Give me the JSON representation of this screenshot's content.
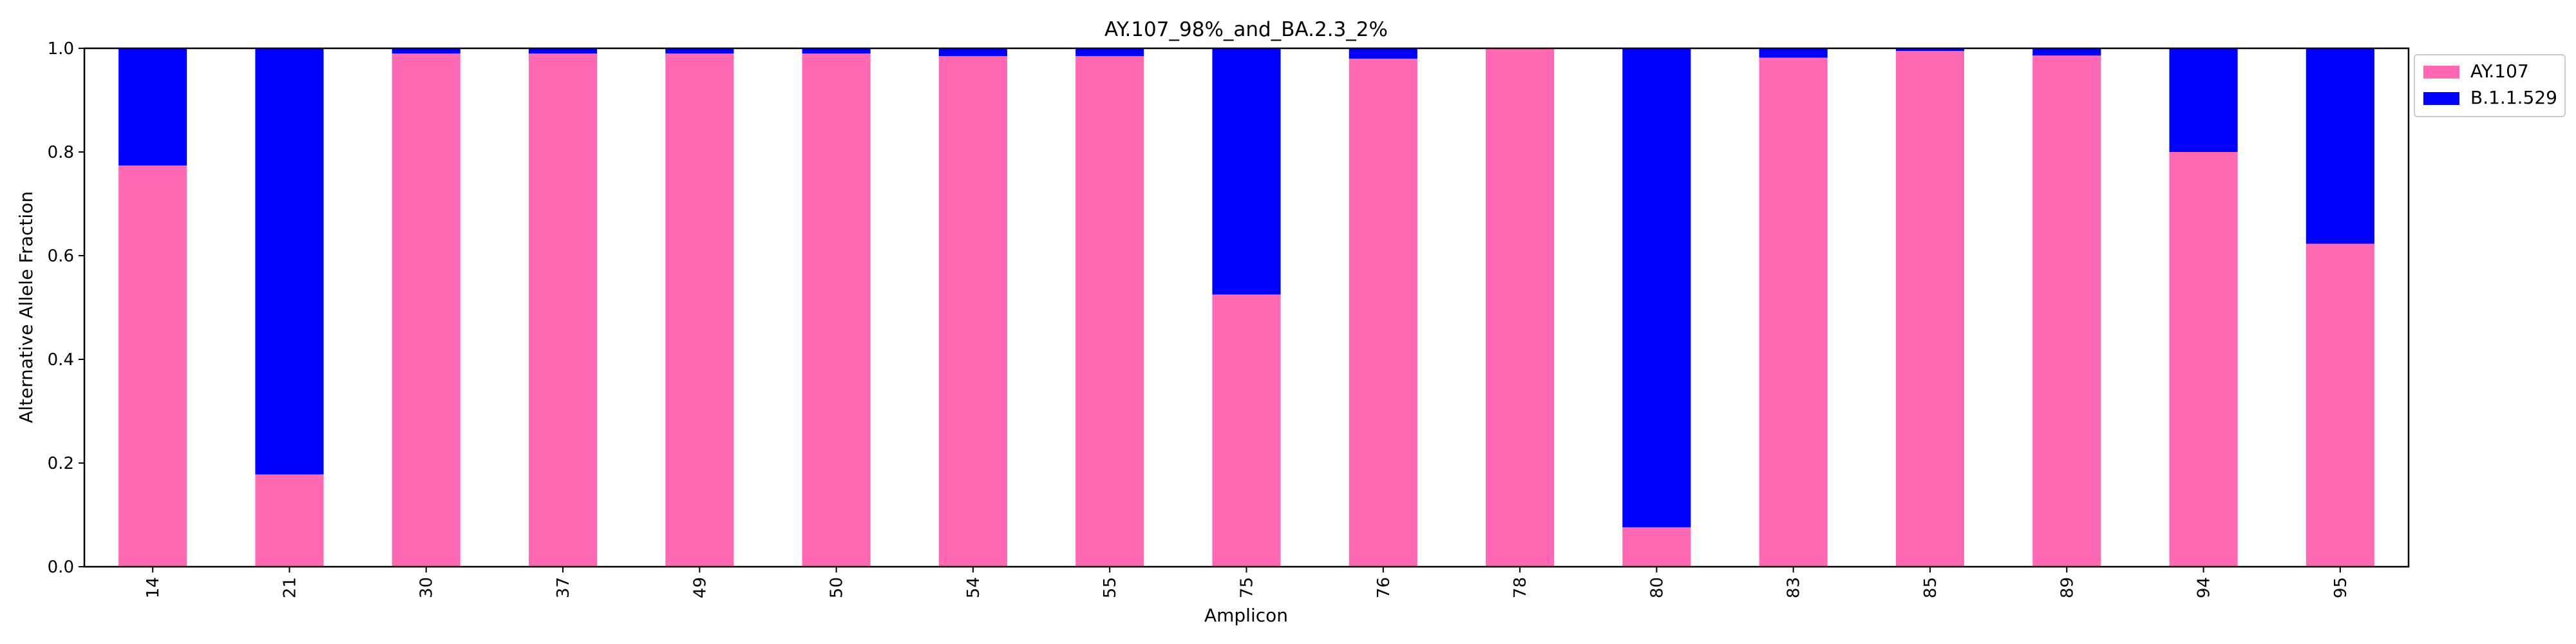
{
  "chart_data": {
    "type": "bar",
    "stacked": true,
    "title": "AY.107_98%_and_BA.2.3_2%",
    "xlabel": "Amplicon",
    "ylabel": "Alternative Allele Fraction",
    "ylim": [
      0,
      1
    ],
    "yticks": [
      "0.0",
      "0.2",
      "0.4",
      "0.6",
      "0.8",
      "1.0"
    ],
    "categories": [
      "14",
      "21",
      "30",
      "37",
      "49",
      "50",
      "54",
      "55",
      "75",
      "76",
      "78",
      "80",
      "83",
      "85",
      "89",
      "94",
      "95"
    ],
    "series": [
      {
        "name": "AY.107",
        "color": "#ff69b4",
        "values": [
          0.774,
          0.178,
          0.99,
          0.99,
          0.99,
          0.99,
          0.985,
          0.985,
          0.525,
          0.98,
          1.0,
          0.076,
          0.982,
          0.995,
          0.986,
          0.8,
          0.623
        ]
      },
      {
        "name": "B.1.1.529",
        "color": "#0000ff",
        "values": [
          0.226,
          0.822,
          0.01,
          0.01,
          0.01,
          0.01,
          0.015,
          0.015,
          0.475,
          0.02,
          0.0,
          0.924,
          0.018,
          0.005,
          0.014,
          0.2,
          0.377
        ]
      }
    ],
    "legend_position": "outside-top-right",
    "grid": false
  }
}
